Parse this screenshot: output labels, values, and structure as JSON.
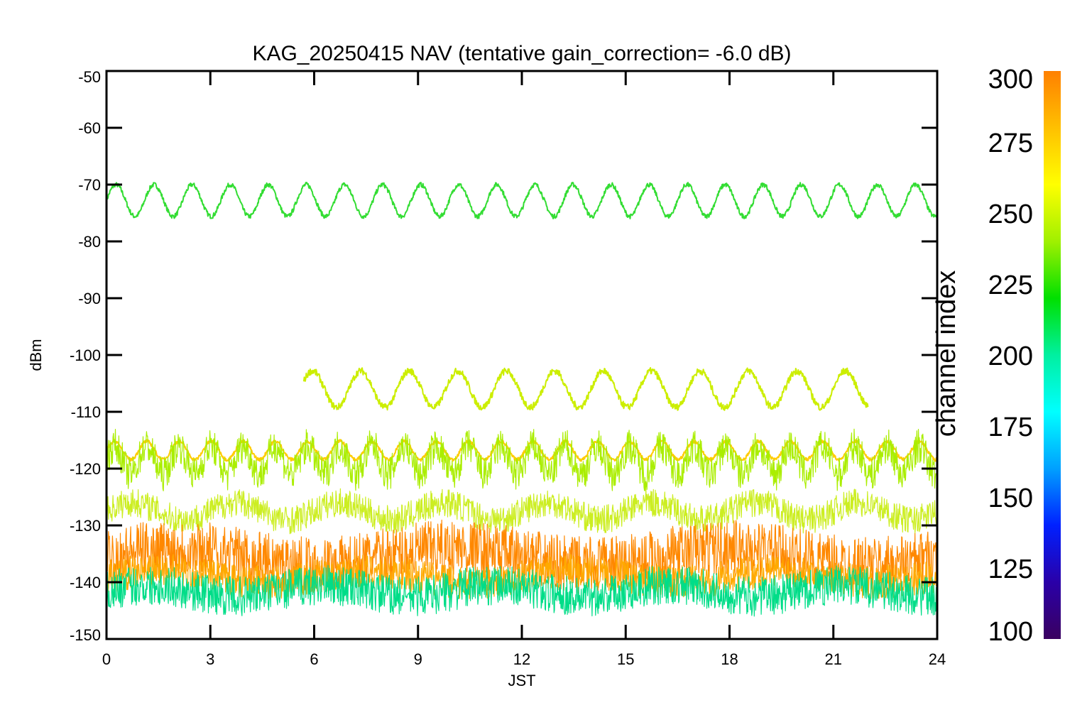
{
  "chart_data": {
    "type": "line",
    "title": "KAG_20250415 NAV (tentative gain_correction= -6.0 dB)",
    "xlabel": "JST",
    "ylabel": "dBm",
    "xlim": [
      0,
      24
    ],
    "ylim": [
      -150,
      -50
    ],
    "x_ticks": [
      "0",
      "3",
      "6",
      "9",
      "12",
      "15",
      "18",
      "21",
      "24"
    ],
    "y_ticks": [
      "-50",
      "-60",
      "-70",
      "-80",
      "-90",
      "-100",
      "-110",
      "-120",
      "-130",
      "-140",
      "-150"
    ],
    "colorbar": {
      "label": "channel index",
      "range": [
        100,
        300
      ],
      "ticks": [
        "300",
        "275",
        "250",
        "225",
        "200",
        "175",
        "150",
        "125",
        "100"
      ],
      "stops": [
        "#3a0060",
        "#2a00a8",
        "#0020ff",
        "#00a0ff",
        "#00ffff",
        "#00f0a0",
        "#00e000",
        "#a0f000",
        "#ffff00",
        "#ffc000",
        "#ff8000"
      ]
    },
    "series": [
      {
        "color": "#33dd33",
        "x_range": [
          0,
          24
        ],
        "center": -72.8,
        "amplitude": 2.8,
        "period_h": 1.1,
        "noise": 0.4
      },
      {
        "color": "#ccee00",
        "x_range": [
          5.7,
          22
        ],
        "center": -106,
        "amplitude": 3.2,
        "period_h": 1.4,
        "noise": 0.6
      },
      {
        "color": "#ffcc00",
        "x_range": [
          0,
          24
        ],
        "center": -116.8,
        "amplitude": 1.6,
        "period_h": 0.93,
        "noise": 0.3
      },
      {
        "color": "#aaee00",
        "x_range": [
          0,
          24
        ],
        "center": -118.5,
        "amplitude": 2.5,
        "period_h": 0.93,
        "noise": 3
      },
      {
        "color": "#ccee22",
        "x_range": [
          0,
          24
        ],
        "center": -127.5,
        "amplitude": 1.5,
        "period_h": 3,
        "noise": 2.5
      },
      {
        "color": "#ff8800",
        "x_range": [
          0,
          24
        ],
        "center": -135.5,
        "amplitude": 1.5,
        "period_h": 8,
        "noise": 5
      },
      {
        "color": "#ffaa00",
        "x_range": [
          0,
          24
        ],
        "center": -139,
        "amplitude": 1,
        "period_h": 6,
        "noise": 3
      },
      {
        "color": "#00dd88",
        "x_range": [
          0,
          24
        ],
        "center": -141.5,
        "amplitude": 1,
        "period_h": 5,
        "noise": 3.5
      }
    ]
  }
}
